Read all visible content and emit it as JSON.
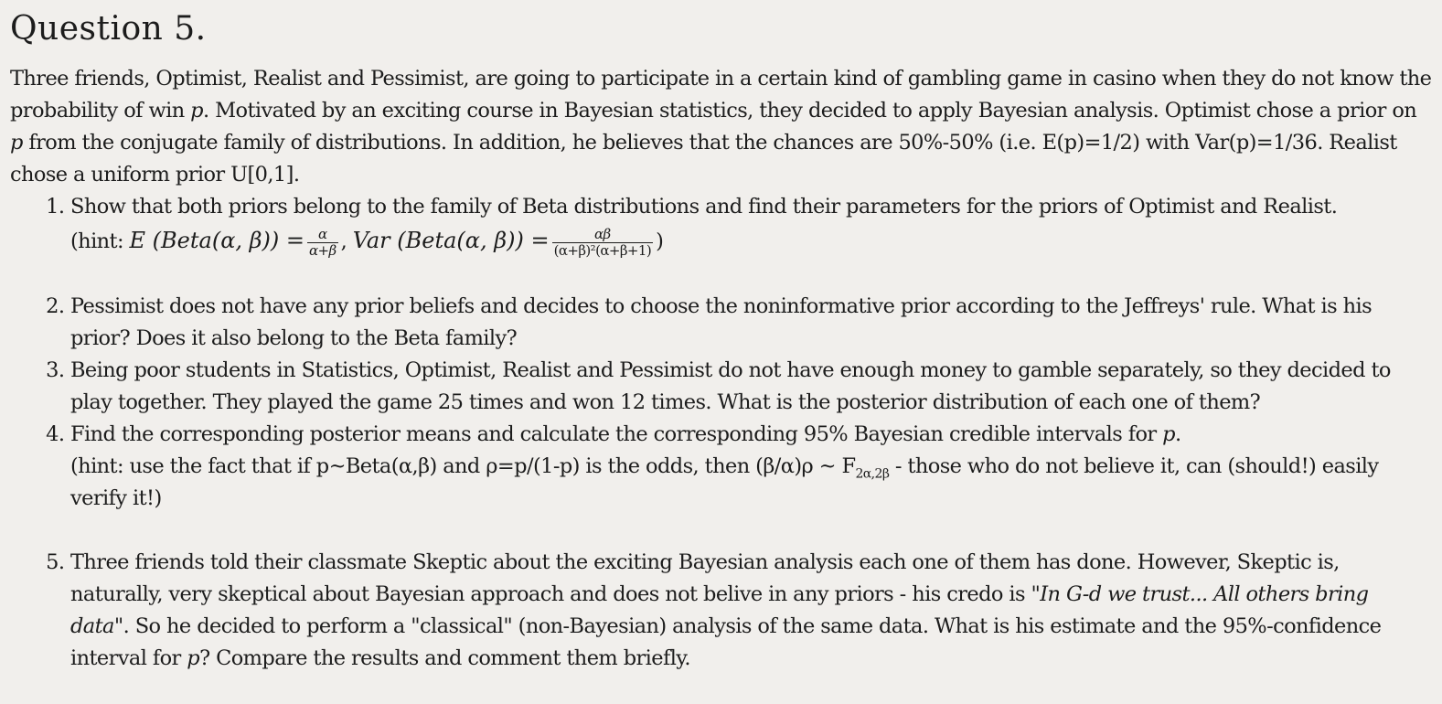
{
  "heading": "Question 5.",
  "intro": "Three friends, Optimist, Realist and Pessimist, are going to participate in a certain kind of gambling game in casino when they do not know the probability of win p. Motivated by an exciting course in Bayesian statistics, they decided to apply Bayesian analysis. Optimist chose a prior on p from the conjugate family of distributions. In addition, he believes that the chances are 50%-50% (i.e. E(p)=1/2) with Var(p)=1/36. Realist chose a uniform prior U[0,1].",
  "intro_parts": {
    "a": "Three friends, Optimist, Realist and Pessimist, are going to participate in a certain kind of gambling game in casino when they do not know the probability of win ",
    "p1": "p",
    "b": ". Motivated by an exciting course in Bayesian statistics, they decided to apply Bayesian analysis. Optimist chose a prior on ",
    "p2": "p",
    "c": " from the conjugate family of distributions. In addition, he believes that the chances are 50%-50% (i.e. E(p)=1/2) with Var(p)=1/36. Realist chose a uniform prior U[0,1]."
  },
  "items": [
    {
      "text": "Show that both priors belong to the family of Beta distributions and find their parameters for the priors of Optimist and Realist.",
      "hint": {
        "open": "(hint: ",
        "expect_lhs": "E (Beta(α, β)) =",
        "mean_num": "α",
        "mean_den": "α+β",
        "sep": ",",
        "var_lhs": "Var (Beta(α, β)) =",
        "var_num": "αβ",
        "var_den": "(α+β)²(α+β+1)",
        "close": ")"
      }
    },
    {
      "text": "Pessimist does not have any prior beliefs and decides to choose the noninformative prior according to the Jeffreys' rule. What is his prior? Does it also belong to the Beta family?"
    },
    {
      "text": "Being poor students in Statistics, Optimist, Realist and Pessimist do not have enough money to gamble separately, so they decided to play together. They played the game 25 times and won 12 times. What is the posterior distribution of each one of them?"
    },
    {
      "text_a": "Find the corresponding posterior means and calculate the corresponding 95% Bayesian credible intervals for ",
      "text_p": "p",
      "text_b": ".",
      "hint_a": "(hint: use the fact that if p~Beta(α,β) and ρ=p/(1-p) is the odds, then (β/α)ρ ~ F",
      "hint_sub": "2α,2β",
      "hint_b": " - those who do not believe it, can (should!) easily verify it!)"
    },
    {
      "text_a": "Three friends told their classmate Skeptic about the exciting Bayesian analysis each one of them has done. However, Skeptic is, naturally, very skeptical about Bayesian approach and does not belive in any priors - his credo is \"",
      "quote_a": "In G-d we trust... All others bring data",
      "text_b": "\". So he decided to perform a \"classical\" (non-Bayesian) analysis of the same data. What is his estimate and the 95%-confidence interval for ",
      "text_p": "p",
      "text_c": "? Compare the results and comment them briefly."
    }
  ]
}
